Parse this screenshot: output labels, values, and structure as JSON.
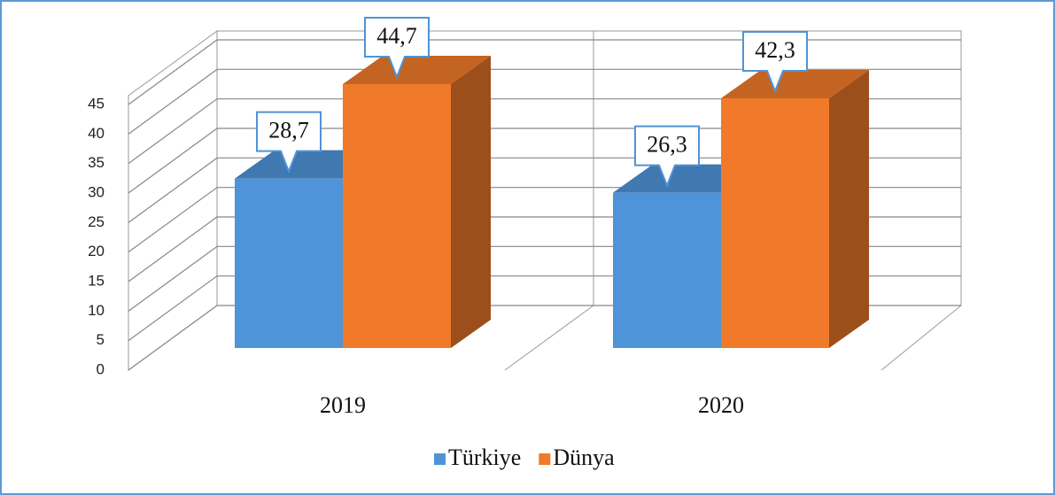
{
  "chart_data": {
    "type": "bar3d",
    "categories": [
      "2019",
      "2020"
    ],
    "series": [
      {
        "name": "Türkiye",
        "color": "#4f93d8",
        "values": [
          28.7,
          26.3
        ],
        "value_labels": [
          "28,7",
          "26,3"
        ]
      },
      {
        "name": "Dünya",
        "color": "#f07a2a",
        "values": [
          44.7,
          42.3
        ],
        "value_labels": [
          "44,7",
          "42,3"
        ]
      }
    ],
    "ylim": [
      0,
      45
    ],
    "yticks": [
      0,
      5,
      10,
      15,
      20,
      25,
      30,
      35,
      40,
      45
    ],
    "grid": true,
    "legend": "bottom"
  }
}
